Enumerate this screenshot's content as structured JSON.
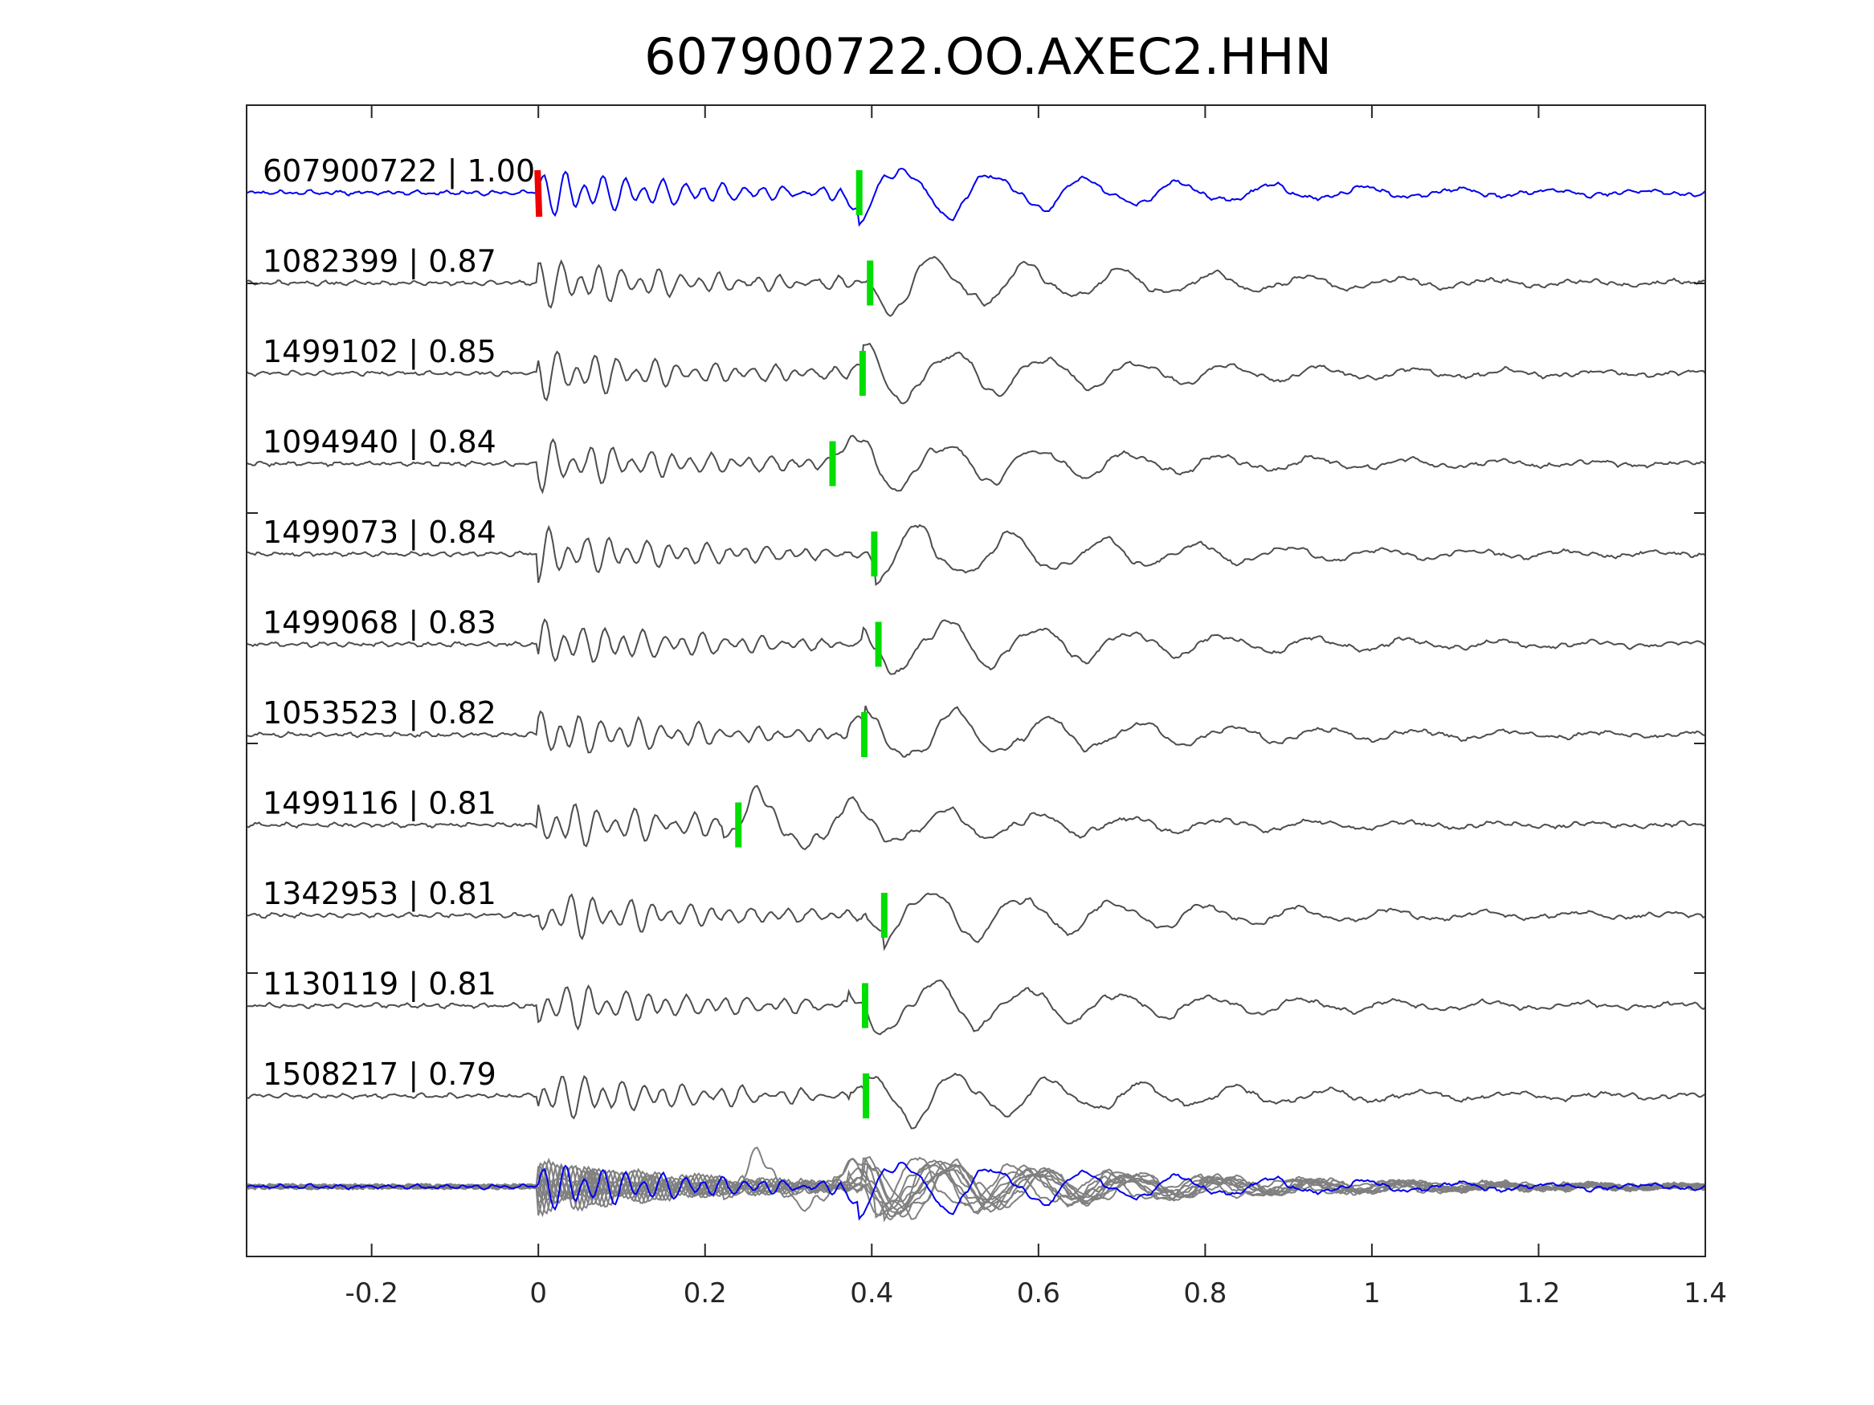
{
  "chart_data": {
    "type": "line",
    "title": "607900722.OO.AXEC2.HHN",
    "xlabel": "",
    "ylabel": "",
    "xlim": [
      -0.35,
      1.4
    ],
    "xticks": [
      -0.2,
      0,
      0.2,
      0.4,
      0.6,
      0.8,
      1.0,
      1.2,
      1.4
    ],
    "xtick_labels": [
      "-0.2",
      "0",
      "0.2",
      "0.4",
      "0.6",
      "0.8",
      "1",
      "1.2",
      "1.4"
    ],
    "grid": false,
    "reference_pick_time": 0.0,
    "traces": [
      {
        "id": "607900722",
        "cc": "1.00",
        "label": "607900722 | 1.00",
        "pick": 0.385,
        "reference": true
      },
      {
        "id": "1082399",
        "cc": "0.87",
        "label": "1082399 | 0.87",
        "pick": 0.398,
        "reference": false
      },
      {
        "id": "1499102",
        "cc": "0.85",
        "label": "1499102 | 0.85",
        "pick": 0.389,
        "reference": false
      },
      {
        "id": "1094940",
        "cc": "0.84",
        "label": "1094940 | 0.84",
        "pick": 0.353,
        "reference": false
      },
      {
        "id": "1499073",
        "cc": "0.84",
        "label": "1499073 | 0.84",
        "pick": 0.403,
        "reference": false
      },
      {
        "id": "1499068",
        "cc": "0.83",
        "label": "1499068 | 0.83",
        "pick": 0.408,
        "reference": false
      },
      {
        "id": "1053523",
        "cc": "0.82",
        "label": "1053523 | 0.82",
        "pick": 0.391,
        "reference": false
      },
      {
        "id": "1499116",
        "cc": "0.81",
        "label": "1499116 | 0.81",
        "pick": 0.24,
        "reference": false
      },
      {
        "id": "1342953",
        "cc": "0.81",
        "label": "1342953 | 0.81",
        "pick": 0.415,
        "reference": false
      },
      {
        "id": "1130119",
        "cc": "0.81",
        "label": "1130119 | 0.81",
        "pick": 0.392,
        "reference": false
      },
      {
        "id": "1508217",
        "cc": "0.79",
        "label": "1508217 | 0.79",
        "pick": 0.393,
        "reference": false
      }
    ],
    "colors": {
      "reference_trace": "#0000ee",
      "other_traces": "#4d4d4d",
      "stack_traces": "#808080",
      "reference_pick": "#ee0000",
      "secondary_pick": "#00dd00",
      "axes": "#262626"
    }
  }
}
